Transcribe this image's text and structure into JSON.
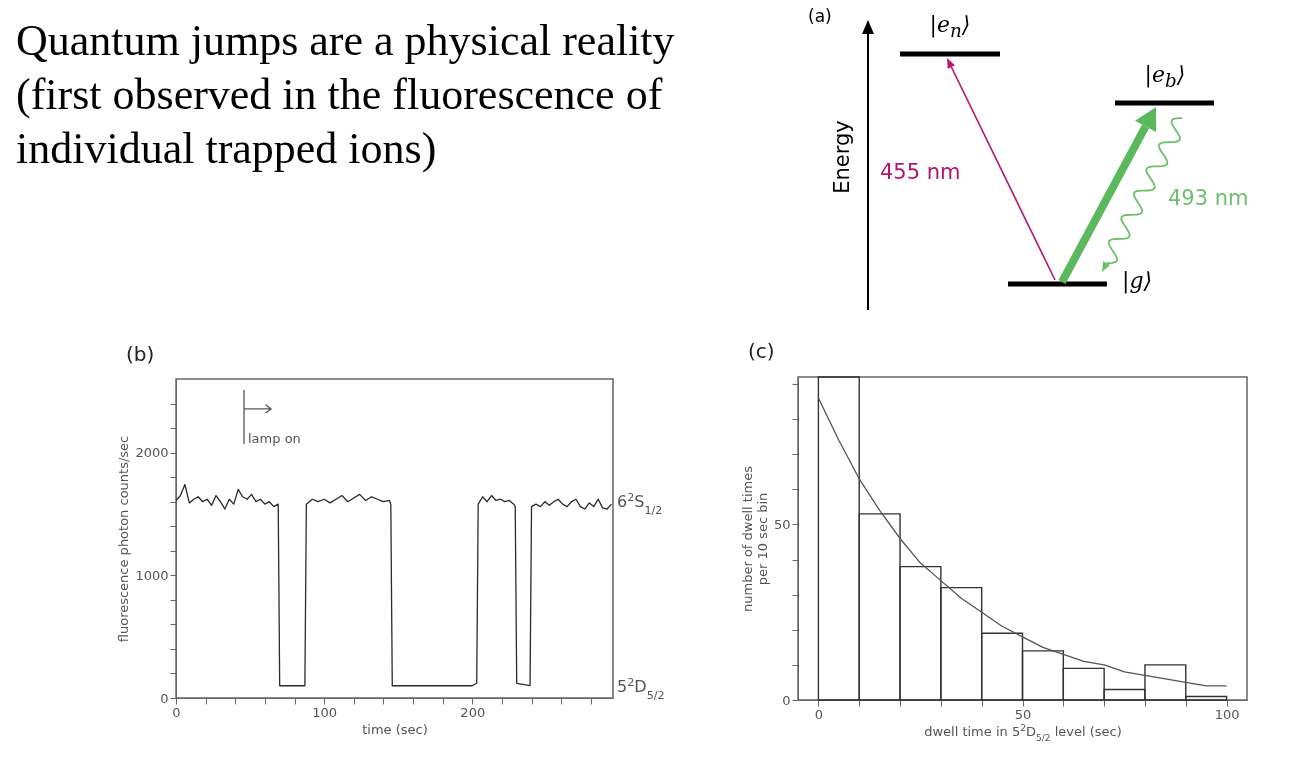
{
  "chart_data": [
    {
      "type": "other",
      "title": "Quantum jumps are a physical reality (first observed in the fluorescence of individual trapped ions)"
    },
    {
      "type": "other",
      "title": "(a)",
      "ylabel": "Energy",
      "annotations": [
        "|e$_{n}$⟩",
        "|e$_{b}$⟩",
        "|g⟩",
        "455 nm",
        "493 nm"
      ]
    },
    {
      "type": "line",
      "title": "(b)",
      "xlabel": "time (sec)",
      "ylabel": "fluorescence photon counts/sec",
      "color": "#2b2b2b",
      "x": [
        0,
        3,
        6,
        9,
        12,
        15,
        18,
        21,
        24,
        27,
        30,
        33,
        36,
        39,
        42,
        45,
        48,
        51,
        54,
        57,
        60,
        63,
        66,
        69,
        70,
        78,
        87,
        88,
        92,
        96,
        100,
        104,
        108,
        112,
        116,
        120,
        124,
        128,
        132,
        136,
        140,
        144,
        145,
        146,
        150,
        160,
        170,
        180,
        190,
        200,
        203,
        204,
        207,
        210,
        213,
        216,
        219,
        222,
        225,
        228,
        229,
        230,
        239,
        240,
        243,
        246,
        249,
        252,
        255,
        258,
        261,
        264,
        267,
        270,
        273,
        276,
        279,
        282,
        285,
        288,
        291,
        294
      ],
      "values": [
        1610,
        1650,
        1740,
        1590,
        1620,
        1640,
        1600,
        1620,
        1570,
        1650,
        1600,
        1540,
        1620,
        1580,
        1700,
        1640,
        1620,
        1660,
        1600,
        1620,
        1580,
        1600,
        1560,
        1580,
        100,
        100,
        100,
        1580,
        1620,
        1600,
        1620,
        1590,
        1620,
        1650,
        1600,
        1630,
        1660,
        1610,
        1640,
        1620,
        1600,
        1610,
        1580,
        100,
        100,
        100,
        100,
        100,
        100,
        100,
        120,
        1580,
        1640,
        1600,
        1650,
        1610,
        1620,
        1600,
        1610,
        1580,
        1560,
        120,
        100,
        1560,
        1580,
        1560,
        1600,
        1570,
        1600,
        1620,
        1580,
        1560,
        1600,
        1620,
        1560,
        1540,
        1590,
        1560,
        1620,
        1550,
        1540,
        1580
      ],
      "xlim": [
        0,
        295
      ],
      "ylim": [
        0,
        2600
      ],
      "xticks": [
        0,
        {
          "value": 20,
          "label": null
        },
        {
          "value": 40,
          "label": null
        },
        {
          "value": 60,
          "label": null
        },
        {
          "value": 80,
          "label": null
        },
        100,
        {
          "value": 120,
          "label": null
        },
        {
          "value": 140,
          "label": null
        },
        {
          "value": 160,
          "label": null
        },
        {
          "value": 180,
          "label": null
        },
        200,
        {
          "value": 220,
          "label": null
        },
        {
          "value": 240,
          "label": null
        },
        {
          "value": 260,
          "label": null
        },
        {
          "value": 280,
          "label": null
        }
      ],
      "yticks": [
        0,
        {
          "value": 200,
          "label": null
        },
        {
          "value": 400,
          "label": null
        },
        {
          "value": 600,
          "label": null
        },
        {
          "value": 800,
          "label": null
        },
        1000,
        {
          "value": 1200,
          "label": null
        },
        {
          "value": 1400,
          "label": null
        },
        {
          "value": 1600,
          "label": null
        },
        {
          "value": 1800,
          "label": null
        },
        2000,
        {
          "value": 2200,
          "label": null
        },
        {
          "value": 2400,
          "label": null
        }
      ],
      "annotations": [
        "lamp on",
        "6$^{2}$S$_{1/2}$",
        "5$^{2}$D$_{5/2}$"
      ]
    },
    {
      "type": "histogram",
      "title": "(c)",
      "xlabel": "dwell time in 5$^{2}$D$_{5/2}$ level (sec)",
      "ylabel": "number of dwell times\nper 10 sec bin",
      "bins": [
        0,
        10,
        20,
        30,
        40,
        50,
        60,
        70,
        80,
        90,
        100
      ],
      "series": [
        {
          "type": "histogram",
          "color": "#333333",
          "values": [
            92,
            53,
            38,
            32,
            19,
            14,
            9,
            3,
            10,
            1
          ]
        },
        {
          "type": "line",
          "color": "#555555",
          "x": [
            0,
            5,
            10,
            15,
            20,
            25,
            30,
            35,
            40,
            45,
            50,
            55,
            60,
            65,
            70,
            75,
            80,
            85,
            90,
            95,
            100
          ],
          "values": [
            86,
            74,
            63,
            54,
            46,
            39,
            34,
            29,
            25,
            21,
            18,
            15,
            13,
            11,
            10,
            8,
            7,
            6,
            5,
            4,
            4
          ]
        }
      ],
      "xlim": [
        -5,
        105
      ],
      "ylim": [
        0,
        92
      ],
      "xticks": [
        0,
        {
          "value": 10,
          "label": null
        },
        {
          "value": 20,
          "label": null
        },
        {
          "value": 30,
          "label": null
        },
        {
          "value": 40,
          "label": null
        },
        50,
        {
          "value": 60,
          "label": null
        },
        {
          "value": 70,
          "label": null
        },
        {
          "value": 80,
          "label": null
        },
        {
          "value": 90,
          "label": null
        },
        100
      ],
      "yticks": [
        0,
        {
          "value": 10,
          "label": null
        },
        {
          "value": 20,
          "label": null
        },
        {
          "value": 30,
          "label": null
        },
        {
          "value": 40,
          "label": null
        },
        50,
        {
          "value": 60,
          "label": null
        },
        {
          "value": 70,
          "label": null
        },
        {
          "value": 80,
          "label": null
        },
        {
          "value": 90,
          "label": null
        }
      ]
    }
  ]
}
